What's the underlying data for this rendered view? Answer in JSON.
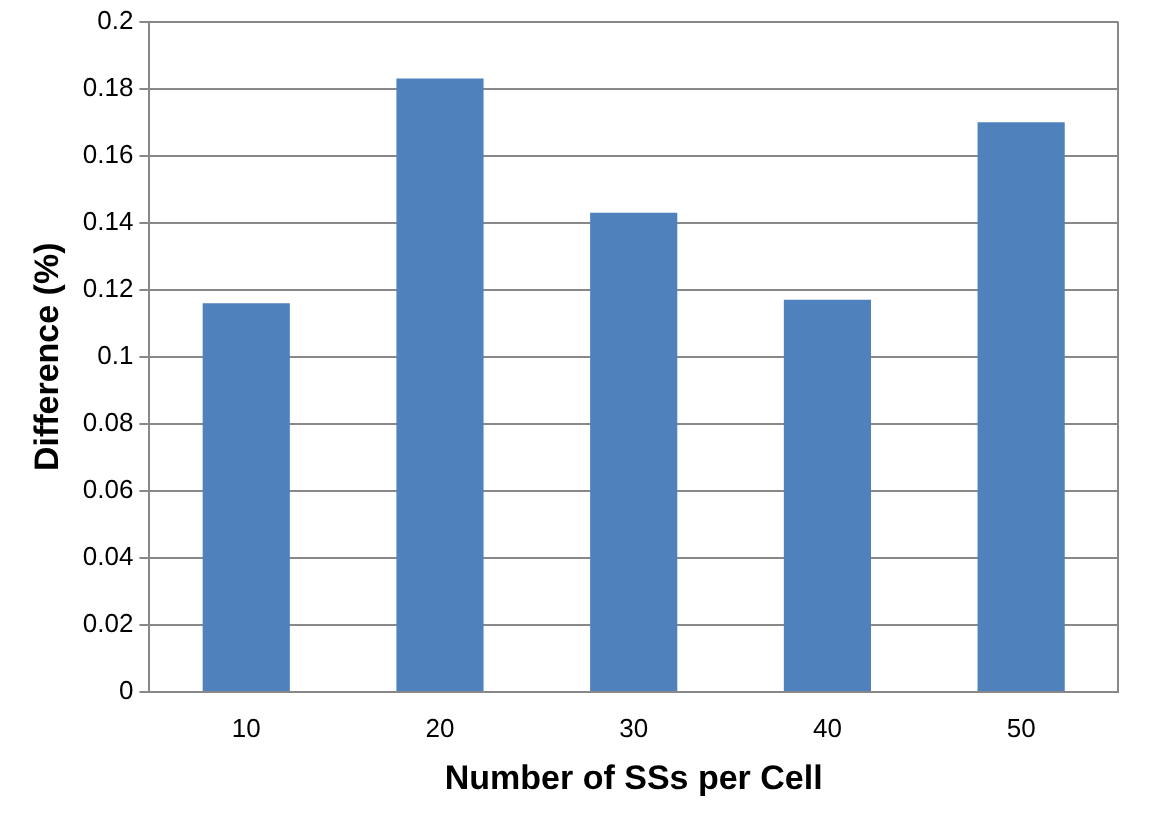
{
  "chart_data": {
    "type": "bar",
    "xlabel": "Number of SSs per Cell",
    "ylabel": "Difference (%)",
    "categories": [
      "10",
      "20",
      "30",
      "40",
      "50"
    ],
    "values": [
      0.116,
      0.183,
      0.143,
      0.117,
      0.17
    ],
    "color": "#4f81bd",
    "ylim": [
      0,
      0.2
    ],
    "yticks": [
      0,
      0.02,
      0.04,
      0.06,
      0.08,
      0.1,
      0.12,
      0.14,
      0.16,
      0.18,
      0.2
    ],
    "grid": "y",
    "legend": false
  }
}
